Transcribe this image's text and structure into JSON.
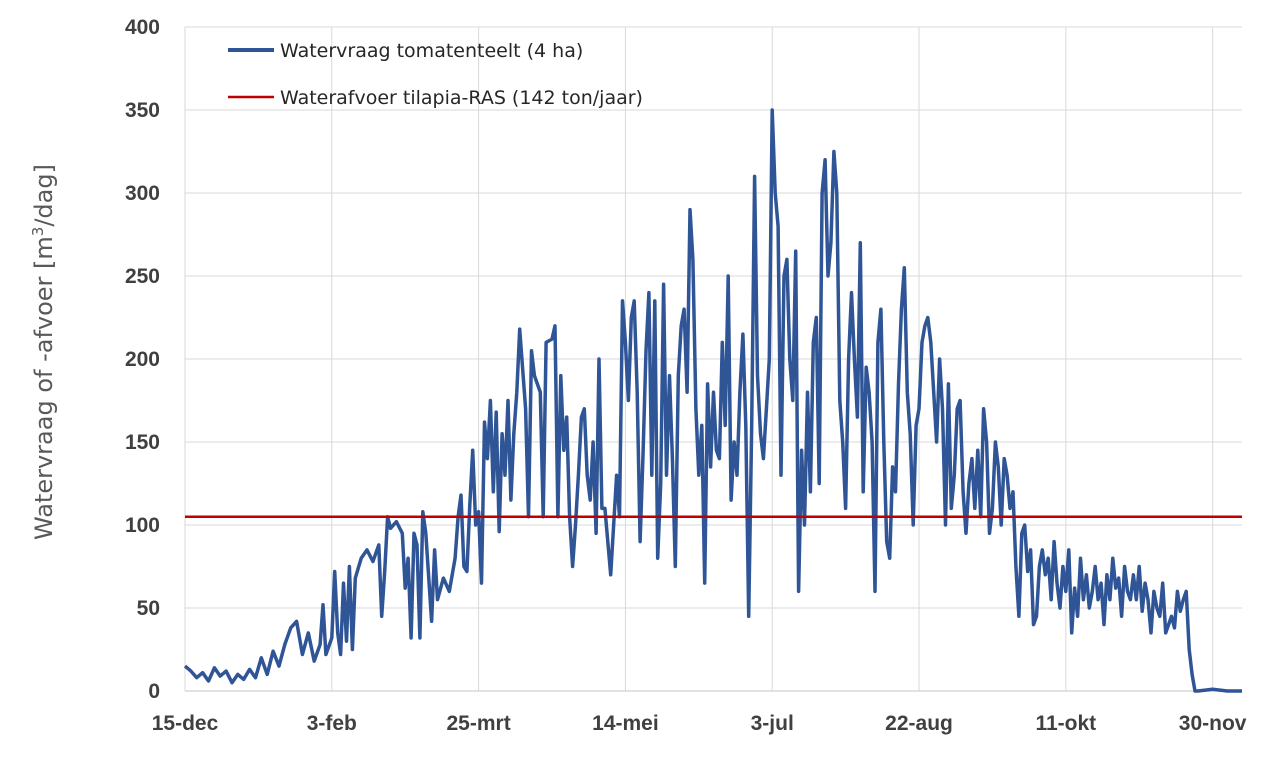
{
  "chart_data": {
    "type": "line",
    "ylabel_main": "Watervraag of -afvoer [m",
    "ylabel_sup": "3",
    "ylabel_end": "/dag]",
    "ylim": [
      0,
      400
    ],
    "yticks": [
      0,
      50,
      100,
      150,
      200,
      250,
      300,
      350,
      400
    ],
    "xlim": [
      0,
      360
    ],
    "xticks": [
      {
        "x": 0,
        "label": "15-dec"
      },
      {
        "x": 50,
        "label": "3-feb"
      },
      {
        "x": 100,
        "label": "25-mrt"
      },
      {
        "x": 150,
        "label": "14-mei"
      },
      {
        "x": 200,
        "label": "3-jul"
      },
      {
        "x": 250,
        "label": "22-aug"
      },
      {
        "x": 300,
        "label": "11-okt"
      },
      {
        "x": 350,
        "label": "30-nov"
      }
    ],
    "grid": true,
    "legend_position": "top-left",
    "series": [
      {
        "name": "Watervraag tomatenteelt (4 ha)",
        "color": "#2f5597",
        "points": [
          [
            0,
            15
          ],
          [
            2,
            12
          ],
          [
            4,
            8
          ],
          [
            6,
            11
          ],
          [
            8,
            6
          ],
          [
            10,
            14
          ],
          [
            12,
            9
          ],
          [
            14,
            12
          ],
          [
            16,
            5
          ],
          [
            18,
            10
          ],
          [
            20,
            7
          ],
          [
            22,
            13
          ],
          [
            24,
            8
          ],
          [
            26,
            20
          ],
          [
            28,
            10
          ],
          [
            30,
            24
          ],
          [
            32,
            15
          ],
          [
            34,
            28
          ],
          [
            36,
            38
          ],
          [
            38,
            42
          ],
          [
            40,
            22
          ],
          [
            42,
            35
          ],
          [
            44,
            18
          ],
          [
            46,
            28
          ],
          [
            47,
            52
          ],
          [
            48,
            22
          ],
          [
            50,
            32
          ],
          [
            51,
            72
          ],
          [
            52,
            35
          ],
          [
            53,
            22
          ],
          [
            54,
            65
          ],
          [
            55,
            30
          ],
          [
            56,
            75
          ],
          [
            57,
            25
          ],
          [
            58,
            68
          ],
          [
            60,
            80
          ],
          [
            62,
            85
          ],
          [
            64,
            78
          ],
          [
            66,
            88
          ],
          [
            67,
            45
          ],
          [
            68,
            72
          ],
          [
            69,
            105
          ],
          [
            70,
            98
          ],
          [
            72,
            102
          ],
          [
            74,
            95
          ],
          [
            75,
            62
          ],
          [
            76,
            80
          ],
          [
            77,
            32
          ],
          [
            78,
            95
          ],
          [
            79,
            88
          ],
          [
            80,
            32
          ],
          [
            81,
            108
          ],
          [
            82,
            95
          ],
          [
            84,
            42
          ],
          [
            85,
            85
          ],
          [
            86,
            55
          ],
          [
            88,
            68
          ],
          [
            90,
            60
          ],
          [
            92,
            80
          ],
          [
            93,
            105
          ],
          [
            94,
            118
          ],
          [
            95,
            75
          ],
          [
            96,
            72
          ],
          [
            97,
            112
          ],
          [
            98,
            145
          ],
          [
            99,
            100
          ],
          [
            100,
            108
          ],
          [
            101,
            65
          ],
          [
            102,
            162
          ],
          [
            103,
            140
          ],
          [
            104,
            175
          ],
          [
            105,
            120
          ],
          [
            106,
            168
          ],
          [
            107,
            96
          ],
          [
            108,
            155
          ],
          [
            109,
            130
          ],
          [
            110,
            175
          ],
          [
            111,
            115
          ],
          [
            112,
            155
          ],
          [
            113,
            180
          ],
          [
            114,
            218
          ],
          [
            116,
            170
          ],
          [
            117,
            105
          ],
          [
            118,
            205
          ],
          [
            119,
            190
          ],
          [
            121,
            180
          ],
          [
            122,
            105
          ],
          [
            123,
            210
          ],
          [
            125,
            212
          ],
          [
            126,
            220
          ],
          [
            127,
            105
          ],
          [
            128,
            190
          ],
          [
            129,
            145
          ],
          [
            130,
            165
          ],
          [
            131,
            105
          ],
          [
            132,
            75
          ],
          [
            133,
            100
          ],
          [
            134,
            130
          ],
          [
            135,
            165
          ],
          [
            136,
            170
          ],
          [
            137,
            130
          ],
          [
            138,
            115
          ],
          [
            139,
            150
          ],
          [
            140,
            95
          ],
          [
            141,
            200
          ],
          [
            142,
            110
          ],
          [
            143,
            110
          ],
          [
            145,
            70
          ],
          [
            147,
            130
          ],
          [
            148,
            105
          ],
          [
            149,
            235
          ],
          [
            150,
            210
          ],
          [
            151,
            175
          ],
          [
            152,
            225
          ],
          [
            153,
            235
          ],
          [
            154,
            180
          ],
          [
            155,
            90
          ],
          [
            156,
            142
          ],
          [
            157,
            205
          ],
          [
            158,
            240
          ],
          [
            159,
            130
          ],
          [
            160,
            235
          ],
          [
            161,
            80
          ],
          [
            162,
            125
          ],
          [
            163,
            245
          ],
          [
            164,
            130
          ],
          [
            165,
            190
          ],
          [
            166,
            140
          ],
          [
            167,
            75
          ],
          [
            168,
            190
          ],
          [
            169,
            220
          ],
          [
            170,
            230
          ],
          [
            171,
            180
          ],
          [
            172,
            290
          ],
          [
            173,
            260
          ],
          [
            174,
            170
          ],
          [
            175,
            130
          ],
          [
            176,
            160
          ],
          [
            177,
            65
          ],
          [
            178,
            185
          ],
          [
            179,
            135
          ],
          [
            180,
            180
          ],
          [
            181,
            145
          ],
          [
            182,
            140
          ],
          [
            183,
            210
          ],
          [
            184,
            160
          ],
          [
            185,
            250
          ],
          [
            186,
            115
          ],
          [
            187,
            150
          ],
          [
            188,
            130
          ],
          [
            189,
            180
          ],
          [
            190,
            215
          ],
          [
            191,
            160
          ],
          [
            192,
            45
          ],
          [
            193,
            160
          ],
          [
            194,
            310
          ],
          [
            195,
            190
          ],
          [
            196,
            155
          ],
          [
            197,
            140
          ],
          [
            198,
            170
          ],
          [
            199,
            200
          ],
          [
            200,
            350
          ],
          [
            201,
            300
          ],
          [
            202,
            280
          ],
          [
            203,
            130
          ],
          [
            204,
            250
          ],
          [
            205,
            260
          ],
          [
            206,
            200
          ],
          [
            207,
            175
          ],
          [
            208,
            265
          ],
          [
            209,
            60
          ],
          [
            210,
            145
          ],
          [
            211,
            100
          ],
          [
            212,
            180
          ],
          [
            213,
            120
          ],
          [
            214,
            210
          ],
          [
            215,
            225
          ],
          [
            216,
            125
          ],
          [
            217,
            300
          ],
          [
            218,
            320
          ],
          [
            219,
            250
          ],
          [
            220,
            270
          ],
          [
            221,
            325
          ],
          [
            222,
            300
          ],
          [
            223,
            175
          ],
          [
            224,
            150
          ],
          [
            225,
            110
          ],
          [
            226,
            200
          ],
          [
            227,
            240
          ],
          [
            228,
            200
          ],
          [
            229,
            165
          ],
          [
            230,
            270
          ],
          [
            231,
            120
          ],
          [
            232,
            195
          ],
          [
            233,
            180
          ],
          [
            234,
            150
          ],
          [
            235,
            60
          ],
          [
            236,
            210
          ],
          [
            237,
            230
          ],
          [
            238,
            150
          ],
          [
            239,
            90
          ],
          [
            240,
            80
          ],
          [
            241,
            135
          ],
          [
            242,
            120
          ],
          [
            243,
            185
          ],
          [
            244,
            230
          ],
          [
            245,
            255
          ],
          [
            246,
            180
          ],
          [
            247,
            155
          ],
          [
            248,
            100
          ],
          [
            249,
            160
          ],
          [
            250,
            170
          ],
          [
            251,
            210
          ],
          [
            252,
            220
          ],
          [
            253,
            225
          ],
          [
            254,
            210
          ],
          [
            255,
            180
          ],
          [
            256,
            150
          ],
          [
            257,
            200
          ],
          [
            258,
            170
          ],
          [
            259,
            100
          ],
          [
            260,
            185
          ],
          [
            261,
            110
          ],
          [
            262,
            130
          ],
          [
            263,
            170
          ],
          [
            264,
            175
          ],
          [
            265,
            120
          ],
          [
            266,
            95
          ],
          [
            267,
            125
          ],
          [
            268,
            140
          ],
          [
            269,
            110
          ],
          [
            270,
            145
          ],
          [
            271,
            105
          ],
          [
            272,
            170
          ],
          [
            273,
            150
          ],
          [
            274,
            95
          ],
          [
            275,
            110
          ],
          [
            276,
            150
          ],
          [
            277,
            135
          ],
          [
            278,
            100
          ],
          [
            279,
            140
          ],
          [
            280,
            130
          ],
          [
            281,
            110
          ],
          [
            282,
            120
          ],
          [
            283,
            75
          ],
          [
            284,
            45
          ],
          [
            285,
            95
          ],
          [
            286,
            100
          ],
          [
            287,
            72
          ],
          [
            288,
            85
          ],
          [
            289,
            40
          ],
          [
            290,
            45
          ],
          [
            291,
            75
          ],
          [
            292,
            85
          ],
          [
            293,
            70
          ],
          [
            294,
            80
          ],
          [
            295,
            55
          ],
          [
            296,
            90
          ],
          [
            297,
            65
          ],
          [
            298,
            50
          ],
          [
            299,
            75
          ],
          [
            300,
            60
          ],
          [
            301,
            85
          ],
          [
            302,
            35
          ],
          [
            303,
            62
          ],
          [
            304,
            45
          ],
          [
            305,
            80
          ],
          [
            306,
            55
          ],
          [
            307,
            70
          ],
          [
            308,
            50
          ],
          [
            309,
            60
          ],
          [
            310,
            75
          ],
          [
            311,
            55
          ],
          [
            312,
            65
          ],
          [
            313,
            40
          ],
          [
            314,
            70
          ],
          [
            315,
            55
          ],
          [
            316,
            80
          ],
          [
            317,
            62
          ],
          [
            318,
            68
          ],
          [
            319,
            45
          ],
          [
            320,
            75
          ],
          [
            321,
            60
          ],
          [
            322,
            55
          ],
          [
            323,
            70
          ],
          [
            324,
            55
          ],
          [
            325,
            75
          ],
          [
            326,
            48
          ],
          [
            327,
            65
          ],
          [
            328,
            55
          ],
          [
            329,
            35
          ],
          [
            330,
            60
          ],
          [
            331,
            50
          ],
          [
            332,
            45
          ],
          [
            333,
            65
          ],
          [
            334,
            35
          ],
          [
            335,
            40
          ],
          [
            336,
            45
          ],
          [
            337,
            38
          ],
          [
            338,
            60
          ],
          [
            339,
            48
          ],
          [
            340,
            55
          ],
          [
            341,
            60
          ],
          [
            342,
            25
          ],
          [
            343,
            10
          ],
          [
            344,
            0
          ],
          [
            345,
            0
          ],
          [
            350,
            1
          ],
          [
            355,
            0
          ],
          [
            360,
            0
          ]
        ]
      },
      {
        "name": "Waterafvoer tilapia-RAS (142 ton/jaar)",
        "color": "#c00000",
        "value": 105
      }
    ]
  }
}
